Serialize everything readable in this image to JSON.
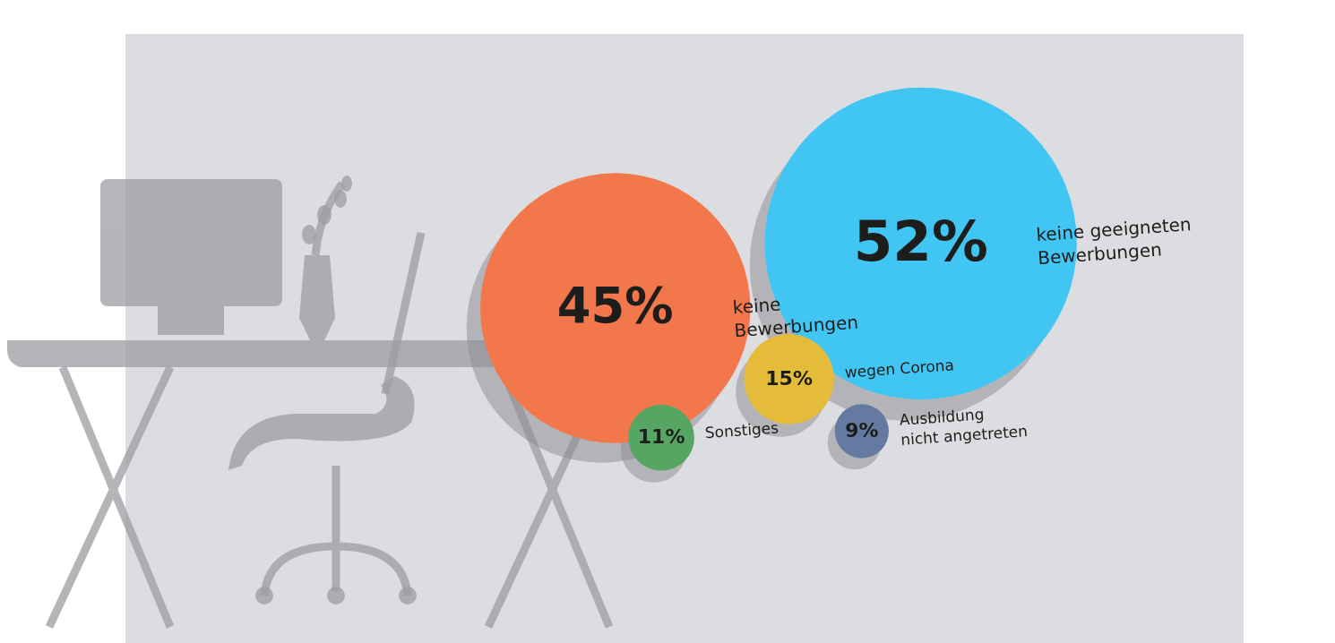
{
  "chart_data": {
    "type": "bubble",
    "categories": [
      "keine geeigneten Bewerbungen",
      "keine Bewerbungen",
      "wegen Corona",
      "Sonstiges",
      "Ausbildung nicht angetreten"
    ],
    "values": [
      52,
      45,
      15,
      11,
      9
    ],
    "value_labels": [
      "52%",
      "45%",
      "15%",
      "11%",
      "9%"
    ],
    "colors": [
      "#41c5f3",
      "#f2774b",
      "#e5bb3a",
      "#56a563",
      "#647aa0"
    ],
    "data_labels": true,
    "tick_labels": false
  }
}
